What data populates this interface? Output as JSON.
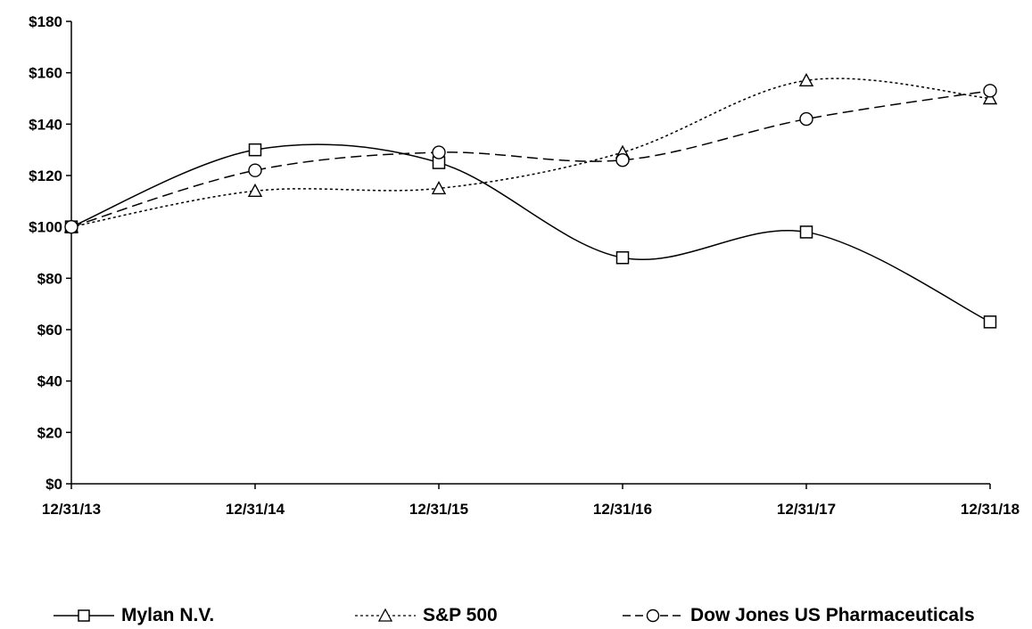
{
  "chart_data": {
    "type": "line",
    "title": "",
    "xlabel": "",
    "ylabel": "",
    "categories": [
      "12/31/13",
      "12/31/14",
      "12/31/15",
      "12/31/16",
      "12/31/17",
      "12/31/18"
    ],
    "ylim": [
      0,
      180
    ],
    "yticks": [
      0,
      20,
      40,
      60,
      80,
      100,
      120,
      140,
      160,
      180
    ],
    "ytick_labels": [
      "$0",
      "$20",
      "$40",
      "$60",
      "$80",
      "$100",
      "$120",
      "$140",
      "$160",
      "$180"
    ],
    "grid": false,
    "smooth": true,
    "legend_position": "bottom",
    "series": [
      {
        "name": "Mylan N.V.",
        "values": [
          100,
          130,
          125,
          88,
          98,
          63
        ],
        "marker": "square",
        "line_style": "solid",
        "color": "#000000"
      },
      {
        "name": "S&P 500",
        "values": [
          100,
          114,
          115,
          129,
          157,
          150
        ],
        "marker": "triangle",
        "line_style": "dotted",
        "color": "#000000"
      },
      {
        "name": "Dow Jones US Pharmaceuticals",
        "values": [
          100,
          122,
          129,
          126,
          142,
          153
        ],
        "marker": "circle",
        "line_style": "dashed",
        "color": "#000000"
      }
    ]
  }
}
